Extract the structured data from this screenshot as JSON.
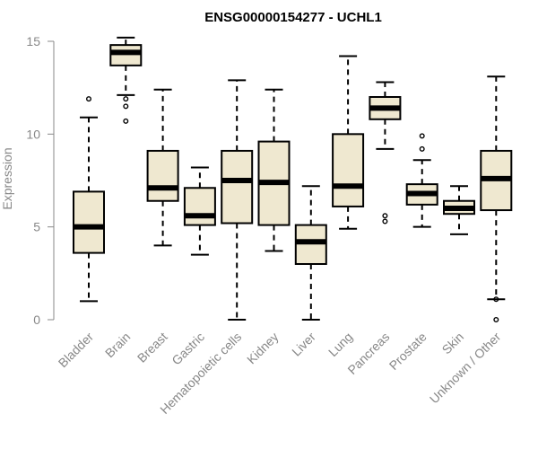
{
  "chart_data": {
    "type": "boxplot",
    "title": "ENSG00000154277 - UCHL1",
    "ylabel": "Expression",
    "xlabel": "",
    "ylim": [
      0,
      15.5
    ],
    "yticks": [
      0,
      5,
      10,
      15
    ],
    "box_fill": "#efe8d0",
    "categories": [
      "Bladder",
      "Brain",
      "Breast",
      "Gastric",
      "Hematopoietic cells",
      "Kidney",
      "Liver",
      "Lung",
      "Pancreas",
      "Prostate",
      "Skin",
      "Unknown / Other"
    ],
    "boxes": [
      {
        "whisker_low": 1.0,
        "q1": 3.6,
        "median": 5.0,
        "q3": 6.9,
        "whisker_high": 10.9,
        "outliers": [
          11.9
        ]
      },
      {
        "whisker_low": 12.1,
        "q1": 13.7,
        "median": 14.4,
        "q3": 14.8,
        "whisker_high": 15.2,
        "outliers": [
          11.9,
          11.5,
          10.7
        ]
      },
      {
        "whisker_low": 4.0,
        "q1": 6.4,
        "median": 7.1,
        "q3": 9.1,
        "whisker_high": 12.4,
        "outliers": []
      },
      {
        "whisker_low": 3.5,
        "q1": 5.1,
        "median": 5.6,
        "q3": 7.1,
        "whisker_high": 8.2,
        "outliers": []
      },
      {
        "whisker_low": 0.0,
        "q1": 5.2,
        "median": 7.5,
        "q3": 9.1,
        "whisker_high": 12.9,
        "outliers": []
      },
      {
        "whisker_low": 3.7,
        "q1": 5.1,
        "median": 7.4,
        "q3": 9.6,
        "whisker_high": 12.4,
        "outliers": []
      },
      {
        "whisker_low": 0.0,
        "q1": 3.0,
        "median": 4.2,
        "q3": 5.1,
        "whisker_high": 7.2,
        "outliers": []
      },
      {
        "whisker_low": 4.9,
        "q1": 6.1,
        "median": 7.2,
        "q3": 10.0,
        "whisker_high": 14.2,
        "outliers": []
      },
      {
        "whisker_low": 9.2,
        "q1": 10.8,
        "median": 11.4,
        "q3": 12.0,
        "whisker_high": 12.8,
        "outliers": [
          5.6,
          5.3
        ]
      },
      {
        "whisker_low": 5.0,
        "q1": 6.2,
        "median": 6.8,
        "q3": 7.3,
        "whisker_high": 8.6,
        "outliers": [
          9.9,
          9.2
        ]
      },
      {
        "whisker_low": 4.6,
        "q1": 5.7,
        "median": 6.0,
        "q3": 6.4,
        "whisker_high": 7.2,
        "outliers": []
      },
      {
        "whisker_low": 1.1,
        "q1": 5.9,
        "median": 7.6,
        "q3": 9.1,
        "whisker_high": 13.1,
        "outliers": [
          1.1,
          0.0
        ]
      }
    ]
  }
}
